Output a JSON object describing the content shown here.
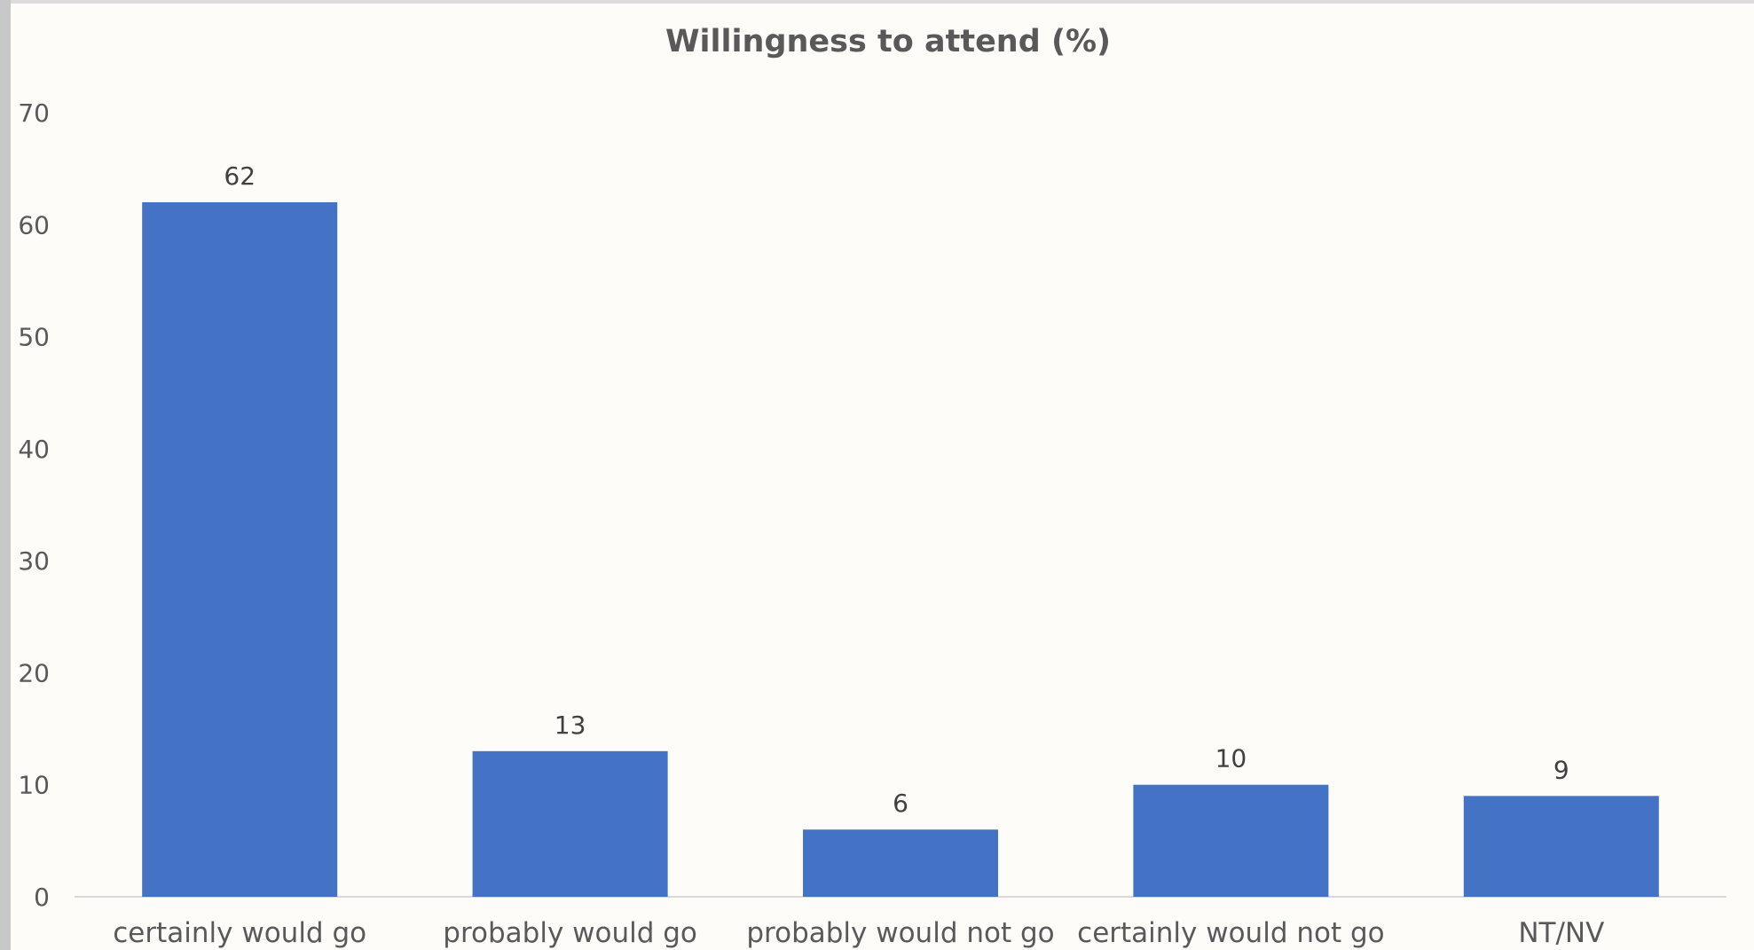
{
  "chart_data": {
    "type": "bar",
    "title": "Willingness to attend (%)",
    "xlabel": "",
    "ylabel": "",
    "categories": [
      "certainly would go",
      "probably would go",
      "probably would not go",
      "certainly would not go",
      "NT/NV"
    ],
    "values": [
      62,
      13,
      6,
      10,
      9
    ],
    "data_labels": [
      "62",
      "13",
      "6",
      "10",
      "9"
    ],
    "ylim": [
      0,
      70
    ],
    "yticks": [
      0,
      10,
      20,
      30,
      40,
      50,
      60,
      70
    ],
    "ytick_labels": [
      "0",
      "10",
      "20",
      "30",
      "40",
      "50",
      "60",
      "70"
    ],
    "grid": false,
    "legend": "none",
    "colors": {
      "bar": "#4472C4",
      "axis": "#D9D9D9",
      "background": "#FDFCF9",
      "text": "#595959"
    }
  }
}
